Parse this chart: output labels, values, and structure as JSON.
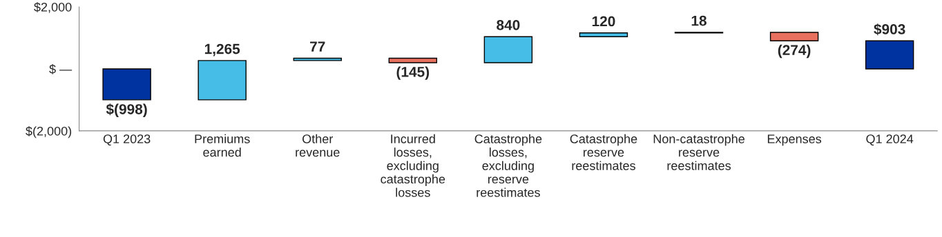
{
  "chart_data": {
    "type": "bar",
    "categories": [
      "Q1 2023",
      "Premiums earned",
      "Other revenue",
      "Incurred losses, excluding catastrophe losses",
      "Catastrophe losses, excluding reserve reestimates",
      "Catastrophe reserve reestimates",
      "Non-catastrophe reserve reestimates",
      "Expenses",
      "Q1 2024"
    ],
    "values": [
      -998,
      1265,
      77,
      -145,
      840,
      120,
      18,
      -274,
      903
    ],
    "base": [
      0,
      -998,
      267,
      344,
      199,
      1039,
      1159,
      1177,
      0
    ],
    "colors": [
      "#0033a0",
      "#45bde6",
      "#45bde6",
      "#e8705f",
      "#45bde6",
      "#45bde6",
      "#45bde6",
      "#e8705f",
      "#0033a0"
    ],
    "value_labels": [
      "$(998)",
      "1,265",
      "77",
      "(145)",
      "840",
      "120",
      "18",
      "(274)",
      "$903"
    ],
    "ylim": [
      -2000,
      2000
    ],
    "yticks": [
      {
        "value": -2000,
        "label": "$(2,000)"
      },
      {
        "value": 0,
        "label": "$ —"
      },
      {
        "value": 2000,
        "label": "$2,000"
      }
    ],
    "grid": false,
    "legend": false
  }
}
